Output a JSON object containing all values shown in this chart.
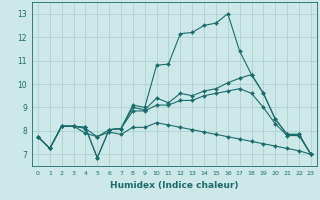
{
  "xlabel": "Humidex (Indice chaleur)",
  "background_color": "#cce8e8",
  "grid_color": "#aacccc",
  "line_color": "#1a6b6b",
  "xlim": [
    -0.5,
    23.5
  ],
  "ylim": [
    6.5,
    13.5
  ],
  "xticks": [
    0,
    1,
    2,
    3,
    4,
    5,
    6,
    7,
    8,
    9,
    10,
    11,
    12,
    13,
    14,
    15,
    16,
    17,
    18,
    19,
    20,
    21,
    22,
    23
  ],
  "yticks": [
    7,
    8,
    9,
    10,
    11,
    12,
    13
  ],
  "series": [
    {
      "x": [
        0,
        1,
        2,
        3,
        4,
        5,
        6,
        7,
        8,
        9,
        10,
        11,
        12,
        13,
        14,
        15,
        16,
        17,
        18,
        19,
        20,
        21,
        22,
        23
      ],
      "y": [
        7.75,
        7.25,
        8.2,
        8.2,
        8.15,
        6.85,
        8.05,
        8.1,
        9.1,
        9.0,
        10.8,
        10.85,
        12.15,
        12.2,
        12.5,
        12.6,
        13.0,
        11.4,
        10.4,
        9.6,
        8.5,
        7.85,
        7.85,
        7.0
      ]
    },
    {
      "x": [
        0,
        1,
        2,
        3,
        4,
        5,
        6,
        7,
        8,
        9,
        10,
        11,
        12,
        13,
        14,
        15,
        16,
        17,
        18,
        19,
        20,
        21,
        22,
        23
      ],
      "y": [
        7.75,
        7.25,
        8.2,
        8.2,
        8.15,
        6.85,
        8.05,
        8.1,
        9.0,
        8.9,
        9.4,
        9.2,
        9.6,
        9.5,
        9.7,
        9.8,
        10.05,
        10.25,
        10.4,
        9.6,
        8.5,
        7.85,
        7.85,
        7.0
      ]
    },
    {
      "x": [
        0,
        1,
        2,
        3,
        4,
        5,
        6,
        7,
        8,
        9,
        10,
        11,
        12,
        13,
        14,
        15,
        16,
        17,
        18,
        19,
        20,
        21,
        22,
        23
      ],
      "y": [
        7.75,
        7.25,
        8.2,
        8.2,
        7.9,
        7.75,
        8.05,
        8.1,
        8.85,
        8.85,
        9.1,
        9.1,
        9.3,
        9.3,
        9.5,
        9.6,
        9.7,
        9.8,
        9.6,
        9.0,
        8.3,
        7.8,
        7.8,
        7.0
      ]
    },
    {
      "x": [
        0,
        1,
        2,
        3,
        4,
        5,
        6,
        7,
        8,
        9,
        10,
        11,
        12,
        13,
        14,
        15,
        16,
        17,
        18,
        19,
        20,
        21,
        22,
        23
      ],
      "y": [
        7.75,
        7.25,
        8.2,
        8.2,
        8.1,
        7.75,
        7.95,
        7.85,
        8.15,
        8.15,
        8.35,
        8.25,
        8.15,
        8.05,
        7.95,
        7.85,
        7.75,
        7.65,
        7.55,
        7.45,
        7.35,
        7.25,
        7.15,
        7.0
      ]
    }
  ]
}
